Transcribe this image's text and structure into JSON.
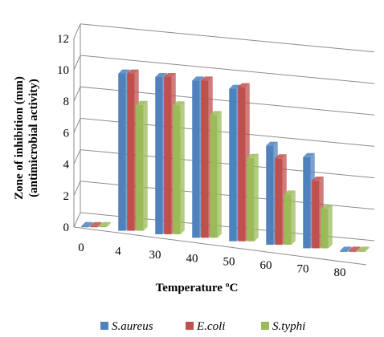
{
  "chart_data": {
    "type": "bar",
    "title": "",
    "xlabel": "Temperature ºC",
    "ylabel_line1": "Zone of inhibition (mm)",
    "ylabel_line2": "(antimicrobial activity)",
    "ylim": [
      0,
      12
    ],
    "yticks": [
      "0",
      "2",
      "4",
      "6",
      "8",
      "10",
      "12"
    ],
    "categories": [
      "0",
      "4",
      "30",
      "40",
      "50",
      "60",
      "70",
      "80"
    ],
    "grid": true,
    "legend_position": "bottom",
    "series": [
      {
        "name": "S.aureus",
        "color": "#4f81bd",
        "values": [
          0,
          10,
          10,
          10,
          9.7,
          6.3,
          5.8,
          0
        ]
      },
      {
        "name": "E.coli",
        "color": "#c0504d",
        "values": [
          0,
          10,
          10,
          10,
          9.8,
          5.5,
          4.3,
          0
        ]
      },
      {
        "name": "S.typhi",
        "color": "#9bbb59",
        "values": [
          0,
          8,
          8.2,
          7.8,
          5.3,
          3.2,
          2.5,
          0
        ]
      }
    ]
  }
}
